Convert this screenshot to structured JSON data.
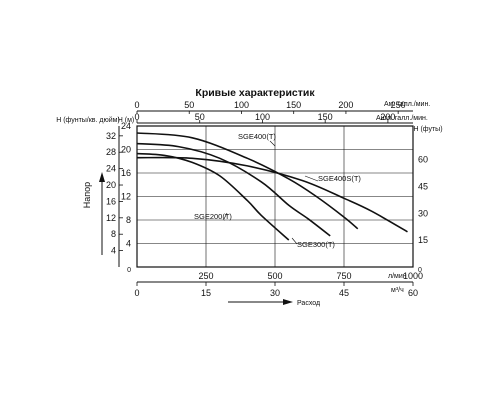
{
  "chart_data": {
    "type": "line",
    "title": "Кривые характеристик",
    "ylabel_left": "Напор",
    "xlabel_bottom": "Расход",
    "axes": {
      "left_psi": {
        "unit": "H (фунты/кв. дюйм)",
        "ticks": [
          4,
          8,
          12,
          16,
          20,
          24,
          28,
          32
        ],
        "range": [
          0,
          34.4
        ]
      },
      "left_m": {
        "unit": "H (м)",
        "ticks": [
          4,
          8,
          12,
          16,
          20,
          24
        ],
        "range": [
          0,
          24
        ]
      },
      "right_ft": {
        "unit": "H (футы)",
        "ticks": [
          15,
          30,
          45,
          60
        ],
        "range": [
          0,
          78.7
        ]
      },
      "bottom_lpm": {
        "unit": "л/мин",
        "ticks": [
          250,
          500,
          750,
          1000
        ],
        "range": [
          0,
          1000
        ]
      },
      "bottom_m3h": {
        "unit": "м³/ч",
        "ticks": [
          0,
          15,
          30,
          45,
          60
        ],
        "range": [
          0,
          60
        ]
      },
      "top_usgpm": {
        "unit": "Ам. галл./мин.",
        "ticks": [
          0,
          50,
          100,
          150,
          200,
          250
        ],
        "range": [
          0,
          264.2
        ]
      },
      "top_ukgpm": {
        "unit": "Англ. галл./мин.",
        "ticks": [
          0,
          50,
          100,
          150,
          200
        ],
        "range": [
          0,
          220
        ]
      },
      "zero_label": "0"
    },
    "series": [
      {
        "name": "SGE200(T)",
        "x": [
          0,
          100,
          200,
          300,
          400,
          450,
          550
        ],
        "y": [
          19.3,
          19.0,
          17.8,
          15.5,
          11.3,
          8.8,
          4.6
        ]
      },
      {
        "name": "SGE300(T)",
        "x": [
          0,
          150,
          300,
          450,
          550,
          620,
          700
        ],
        "y": [
          21.0,
          20.5,
          18.5,
          14.5,
          10.5,
          8.2,
          5.3
        ]
      },
      {
        "name": "SGE400(T)",
        "x": [
          0,
          200,
          400,
          550,
          650,
          750,
          800
        ],
        "y": [
          22.8,
          22.0,
          18.5,
          15.0,
          12.0,
          8.5,
          6.5
        ]
      },
      {
        "name": "SGE400S(T)",
        "x": [
          0,
          200,
          400,
          600,
          750,
          850,
          980
        ],
        "y": [
          18.6,
          18.5,
          17.2,
          14.7,
          11.7,
          9.5,
          6.0
        ]
      }
    ],
    "grid": true
  }
}
